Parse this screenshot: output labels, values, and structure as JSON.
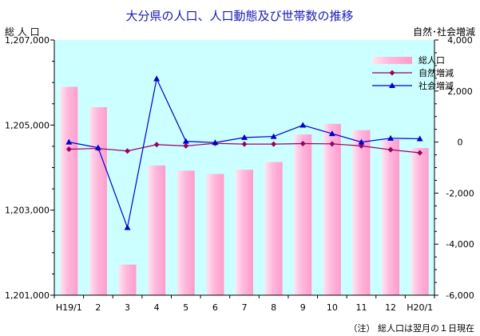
{
  "chart_data": {
    "type": "bar+line",
    "title": "大分県の人口、人口動態及び世帯数の推移",
    "ylabel_left": "総 人 口",
    "ylabel_right": "自然･社会増減",
    "categories": [
      "H19/1",
      "2",
      "3",
      "4",
      "5",
      "6",
      "7",
      "8",
      "9",
      "10",
      "11",
      "12",
      "H20/1"
    ],
    "ylim_left": [
      1201000,
      1207000
    ],
    "yticks_left": [
      "1,201,000",
      "1,203,000",
      "1,205,000",
      "1,207,000"
    ],
    "ylim_right": [
      -6000,
      4000
    ],
    "yticks_right": [
      "-6,000",
      "-4,000",
      "-2,000",
      "0",
      "2,000",
      "4,000"
    ],
    "series": [
      {
        "name": "総人口",
        "type": "bar",
        "axis": "left",
        "values": [
          1205900,
          1205420,
          1201720,
          1204050,
          1203930,
          1203850,
          1203950,
          1204130,
          1204780,
          1205030,
          1204880,
          1204660,
          1204460
        ]
      },
      {
        "name": "自然増減",
        "type": "line",
        "axis": "right",
        "values": [
          -280,
          -250,
          -350,
          -100,
          -150,
          -50,
          -80,
          -80,
          -60,
          -70,
          -150,
          -300,
          -420
        ]
      },
      {
        "name": "社会増減",
        "type": "line",
        "axis": "right",
        "values": [
          0,
          -220,
          -3350,
          2480,
          30,
          -20,
          180,
          220,
          660,
          330,
          0,
          150,
          130
        ]
      }
    ],
    "colors": {
      "bar": "#ffb8dc",
      "natural": "#990066",
      "social": "#0000cc",
      "plot_bg": "#ccffff"
    },
    "grid": false,
    "legend_position": "top-right",
    "note": "（注） 総人口は翌月の１日現在"
  }
}
